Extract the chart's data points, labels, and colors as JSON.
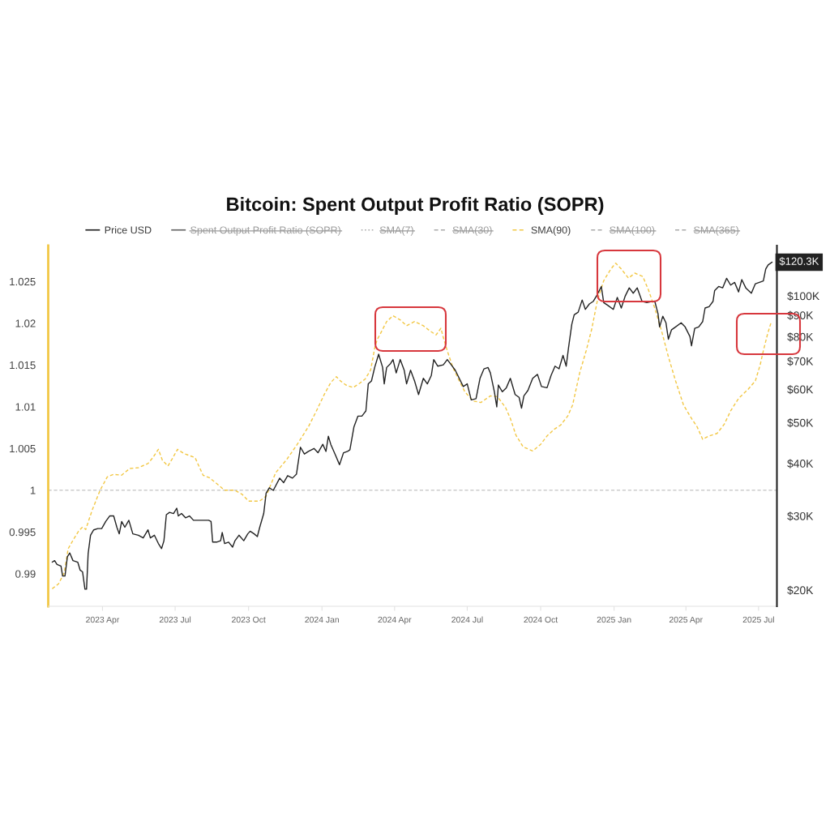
{
  "chart_data": {
    "type": "line",
    "title": "Bitcoin: Spent Output Profit Ratio (SOPR)",
    "xlim": [
      "2023-01-23",
      "2025-07-24"
    ],
    "xticks": [
      {
        "value": "2023-04-01",
        "label": "2023 Apr"
      },
      {
        "value": "2023-07-01",
        "label": "2023 Jul"
      },
      {
        "value": "2023-10-01",
        "label": "2023 Oct"
      },
      {
        "value": "2024-01-01",
        "label": "2024 Jan"
      },
      {
        "value": "2024-04-01",
        "label": "2024 Apr"
      },
      {
        "value": "2024-07-01",
        "label": "2024 Jul"
      },
      {
        "value": "2024-10-01",
        "label": "2024 Oct"
      },
      {
        "value": "2025-01-01",
        "label": "2025 Jan"
      },
      {
        "value": "2025-04-01",
        "label": "2025 Apr"
      },
      {
        "value": "2025-07-01",
        "label": "2025 Jul"
      }
    ],
    "ylim": [
      0.9861,
      1.0293
    ],
    "yticks": [
      0.99,
      0.995,
      1,
      1.005,
      1.01,
      1.015,
      1.02,
      1.025
    ],
    "y2lim": [
      18300,
      131700
    ],
    "y2ticks": [
      {
        "value": 20000,
        "label": "$20K"
      },
      {
        "value": 30000,
        "label": "$30K"
      },
      {
        "value": 40000,
        "label": "$40K"
      },
      {
        "value": 50000,
        "label": "$50K"
      },
      {
        "value": 60000,
        "label": "$60K"
      },
      {
        "value": 70000,
        "label": "$70K"
      },
      {
        "value": 80000,
        "label": "$80K"
      },
      {
        "value": 90000,
        "label": "$90K"
      },
      {
        "value": 100000,
        "label": "$100K"
      }
    ],
    "log": "y2",
    "legend": "top",
    "ref_lines": [
      {
        "axis": "y",
        "value": 1,
        "color": "#cccccc",
        "line_style": "dashed"
      }
    ],
    "series": [
      {
        "name": "Price USD",
        "color": "#222222",
        "axis": "y2",
        "line_style": "solid",
        "x": [
          "2023-01-28",
          "2023-01-31",
          "2023-02-03",
          "2023-02-08",
          "2023-02-10",
          "2023-02-13",
          "2023-02-16",
          "2023-02-19",
          "2023-02-23",
          "2023-03-01",
          "2023-03-04",
          "2023-03-07",
          "2023-03-10",
          "2023-03-12",
          "2023-03-14",
          "2023-03-17",
          "2023-03-21",
          "2023-03-26",
          "2023-03-31",
          "2023-04-05",
          "2023-04-10",
          "2023-04-15",
          "2023-04-19",
          "2023-04-22",
          "2023-04-25",
          "2023-04-29",
          "2023-05-04",
          "2023-05-09",
          "2023-05-16",
          "2023-05-22",
          "2023-05-28",
          "2023-05-31",
          "2023-06-05",
          "2023-06-10",
          "2023-06-14",
          "2023-06-17",
          "2023-06-20",
          "2023-06-24",
          "2023-06-29",
          "2023-07-03",
          "2023-07-05",
          "2023-07-09",
          "2023-07-14",
          "2023-07-19",
          "2023-07-24",
          "2023-07-31",
          "2023-08-07",
          "2023-08-12",
          "2023-08-15",
          "2023-08-17",
          "2023-08-22",
          "2023-08-27",
          "2023-08-29",
          "2023-09-01",
          "2023-09-06",
          "2023-09-11",
          "2023-09-14",
          "2023-09-19",
          "2023-09-25",
          "2023-09-30",
          "2023-10-03",
          "2023-10-08",
          "2023-10-12",
          "2023-10-15",
          "2023-10-20",
          "2023-10-23",
          "2023-10-27",
          "2023-11-01",
          "2023-11-09",
          "2023-11-14",
          "2023-11-19",
          "2023-11-25",
          "2023-11-30",
          "2023-12-05",
          "2023-12-10",
          "2023-12-15",
          "2023-12-22",
          "2023-12-27",
          "2024-01-02",
          "2024-01-06",
          "2024-01-09",
          "2024-01-12",
          "2024-01-18",
          "2024-01-23",
          "2024-01-28",
          "2024-02-02",
          "2024-02-05",
          "2024-02-10",
          "2024-02-15",
          "2024-02-20",
          "2024-02-25",
          "2024-02-28",
          "2024-03-03",
          "2024-03-07",
          "2024-03-12",
          "2024-03-17",
          "2024-03-19",
          "2024-03-22",
          "2024-03-27",
          "2024-03-30",
          "2024-04-03",
          "2024-04-08",
          "2024-04-13",
          "2024-04-16",
          "2024-04-21",
          "2024-04-26",
          "2024-05-01",
          "2024-05-07",
          "2024-05-12",
          "2024-05-17",
          "2024-05-20",
          "2024-05-25",
          "2024-06-01",
          "2024-06-06",
          "2024-06-11",
          "2024-06-16",
          "2024-06-21",
          "2024-06-26",
          "2024-07-01",
          "2024-07-06",
          "2024-07-12",
          "2024-07-17",
          "2024-07-22",
          "2024-07-27",
          "2024-07-30",
          "2024-08-04",
          "2024-08-07",
          "2024-08-09",
          "2024-08-14",
          "2024-08-19",
          "2024-08-24",
          "2024-08-30",
          "2024-09-04",
          "2024-09-07",
          "2024-09-10",
          "2024-09-15",
          "2024-09-21",
          "2024-09-27",
          "2024-10-02",
          "2024-10-09",
          "2024-10-14",
          "2024-10-19",
          "2024-10-24",
          "2024-10-29",
          "2024-11-02",
          "2024-11-05",
          "2024-11-09",
          "2024-11-12",
          "2024-11-17",
          "2024-11-22",
          "2024-11-26",
          "2024-12-01",
          "2024-12-06",
          "2024-12-11",
          "2024-12-16",
          "2024-12-19",
          "2024-12-24",
          "2024-12-31",
          "2025-01-05",
          "2025-01-10",
          "2025-01-15",
          "2025-01-20",
          "2025-01-25",
          "2025-01-30",
          "2025-02-05",
          "2025-02-11",
          "2025-02-18",
          "2025-02-21",
          "2025-02-25",
          "2025-02-27",
          "2025-03-03",
          "2025-03-07",
          "2025-03-10",
          "2025-03-14",
          "2025-03-19",
          "2025-03-26",
          "2025-03-31",
          "2025-04-06",
          "2025-04-08",
          "2025-04-12",
          "2025-04-17",
          "2025-04-22",
          "2025-04-25",
          "2025-04-30",
          "2025-05-05",
          "2025-05-07",
          "2025-05-12",
          "2025-05-17",
          "2025-05-22",
          "2025-05-27",
          "2025-06-01",
          "2025-06-06",
          "2025-06-10",
          "2025-06-15",
          "2025-06-22",
          "2025-06-27",
          "2025-07-02",
          "2025-07-07",
          "2025-07-10",
          "2025-07-13",
          "2025-07-18"
        ],
        "values": [
          23300,
          23500,
          23000,
          22800,
          21600,
          21600,
          24000,
          24500,
          23500,
          23300,
          22300,
          22100,
          20100,
          20100,
          24400,
          27000,
          27800,
          28000,
          28000,
          29100,
          30000,
          30000,
          28200,
          27200,
          29100,
          28200,
          29300,
          27200,
          27000,
          26600,
          27800,
          26600,
          27000,
          25800,
          25100,
          26200,
          30200,
          30600,
          30400,
          31300,
          30000,
          30400,
          29700,
          30000,
          29300,
          29300,
          29300,
          29300,
          29100,
          26000,
          26000,
          26200,
          27400,
          25800,
          26000,
          25300,
          26200,
          27000,
          26200,
          27200,
          27600,
          27200,
          26800,
          28200,
          30400,
          34000,
          35000,
          34500,
          36900,
          36000,
          37400,
          36900,
          37700,
          43700,
          42100,
          42700,
          43400,
          42400,
          44400,
          42700,
          46400,
          44400,
          41800,
          39700,
          42400,
          42700,
          43100,
          48800,
          51800,
          51800,
          53300,
          61800,
          62800,
          67600,
          72700,
          67600,
          61800,
          67600,
          69100,
          70600,
          65600,
          70600,
          66600,
          61800,
          66600,
          62800,
          58300,
          63700,
          61800,
          64700,
          70600,
          68100,
          68600,
          70600,
          68600,
          66600,
          63700,
          60900,
          61800,
          56600,
          57000,
          63700,
          67100,
          67600,
          65600,
          59200,
          54500,
          61400,
          59200,
          60500,
          63700,
          58300,
          57400,
          54100,
          57900,
          59600,
          63700,
          65100,
          60900,
          60500,
          64700,
          68100,
          67100,
          72200,
          68100,
          75500,
          85600,
          90200,
          91500,
          97800,
          92900,
          95700,
          97100,
          100800,
          105300,
          96400,
          95000,
          92900,
          99200,
          93600,
          100000,
          104500,
          101500,
          104500,
          97100,
          96400,
          97100,
          97100,
          90800,
          84400,
          89500,
          86300,
          78900,
          83100,
          84400,
          86300,
          84400,
          80100,
          76100,
          83700,
          84400,
          86900,
          93600,
          94300,
          97100,
          103000,
          105300,
          104500,
          110100,
          106100,
          107700,
          102200,
          109300,
          104500,
          101500,
          106900,
          107700,
          108500,
          115900,
          118500,
          120300
        ],
        "value_labels": [
          null,
          null,
          null,
          null,
          null,
          null,
          null,
          null,
          null,
          null,
          null,
          null,
          null,
          null,
          null,
          null,
          null,
          null,
          null,
          null,
          null,
          null,
          null,
          null,
          null,
          null,
          null,
          null,
          null,
          null,
          null,
          null,
          null,
          null,
          null,
          null,
          null,
          null,
          null,
          null,
          null,
          null,
          null,
          null,
          null,
          null,
          null,
          null,
          null,
          null,
          null,
          null,
          null,
          null,
          null,
          null,
          null,
          null,
          null,
          null,
          null,
          null,
          null,
          null,
          null,
          null,
          null,
          null,
          null,
          null,
          null,
          null,
          null,
          null,
          null,
          null,
          null,
          null,
          null,
          null,
          null,
          null,
          null,
          null,
          null,
          null,
          null,
          null,
          null,
          null,
          null,
          null,
          null,
          null,
          null,
          null,
          null,
          null,
          null,
          null,
          null,
          null,
          null,
          null,
          null,
          null,
          null,
          null,
          null,
          null,
          null,
          null,
          null,
          null,
          null,
          null,
          null,
          null,
          null,
          null,
          null,
          null,
          null,
          null,
          null,
          null,
          null,
          null,
          null,
          null,
          null,
          null,
          null,
          null,
          null,
          null,
          null,
          null,
          null,
          null,
          null,
          null,
          null,
          null,
          null,
          null,
          null,
          null,
          null,
          null,
          null,
          null,
          null,
          null,
          null,
          null,
          null,
          null,
          null,
          null,
          null,
          null,
          null,
          null,
          null,
          null,
          null,
          null,
          null,
          null,
          null,
          null,
          null,
          null,
          null,
          null,
          null,
          null,
          null,
          null,
          null,
          null,
          null,
          null,
          null,
          null,
          null,
          null,
          null,
          null,
          null,
          null,
          null,
          null,
          null,
          null,
          null,
          null,
          null,
          null,
          "$120.3K"
        ]
      },
      {
        "name": "Spent Output Profit Ratio (SOPR)",
        "color": "#666666",
        "line_style": "solid"
      },
      {
        "name": "SMA(7)",
        "color": "#aaaaaa",
        "line_style": "dotted"
      },
      {
        "name": "SMA(30)",
        "color": "#aaaaaa",
        "line_style": "dashed"
      },
      {
        "name": "SMA(90)",
        "color": "#f2c744",
        "line_style": "dashed",
        "x": [
          "2023-01-28",
          "2023-02-05",
          "2023-02-12",
          "2023-02-17",
          "2023-02-23",
          "2023-03-02",
          "2023-03-07",
          "2023-03-11",
          "2023-03-19",
          "2023-03-29",
          "2023-04-07",
          "2023-04-15",
          "2023-04-25",
          "2023-05-05",
          "2023-05-16",
          "2023-05-28",
          "2023-06-03",
          "2023-06-10",
          "2023-06-15",
          "2023-06-22",
          "2023-06-27",
          "2023-07-04",
          "2023-07-12",
          "2023-07-26",
          "2023-08-05",
          "2023-08-13",
          "2023-08-22",
          "2023-09-01",
          "2023-09-14",
          "2023-09-23",
          "2023-10-01",
          "2023-10-15",
          "2023-10-23",
          "2023-11-04",
          "2023-11-18",
          "2023-12-01",
          "2023-12-15",
          "2023-12-25",
          "2024-01-04",
          "2024-01-12",
          "2024-01-19",
          "2024-01-24",
          "2024-01-31",
          "2024-02-09",
          "2024-02-17",
          "2024-02-24",
          "2024-03-02",
          "2024-03-07",
          "2024-03-10",
          "2024-03-15",
          "2024-03-22",
          "2024-03-30",
          "2024-04-08",
          "2024-04-16",
          "2024-04-26",
          "2024-05-07",
          "2024-05-15",
          "2024-05-23",
          "2024-05-29",
          "2024-06-01",
          "2024-06-06",
          "2024-06-13",
          "2024-06-21",
          "2024-06-28",
          "2024-07-08",
          "2024-07-18",
          "2024-07-30",
          "2024-08-08",
          "2024-08-18",
          "2024-08-24",
          "2024-08-31",
          "2024-09-09",
          "2024-09-21",
          "2024-10-01",
          "2024-10-09",
          "2024-10-18",
          "2024-10-26",
          "2024-11-04",
          "2024-11-10",
          "2024-11-19",
          "2024-11-27",
          "2024-12-04",
          "2024-12-11",
          "2024-12-19",
          "2024-12-28",
          "2025-01-03",
          "2025-01-10",
          "2025-01-19",
          "2025-01-27",
          "2025-02-06",
          "2025-02-13",
          "2025-02-21",
          "2025-03-02",
          "2025-03-10",
          "2025-03-19",
          "2025-03-29",
          "2025-04-08",
          "2025-04-15",
          "2025-04-22",
          "2025-04-30",
          "2025-05-10",
          "2025-05-19",
          "2025-05-27",
          "2025-06-06",
          "2025-06-18",
          "2025-06-27",
          "2025-07-03",
          "2025-07-07",
          "2025-07-12",
          "2025-07-17"
        ],
        "values": [
          0.9882,
          0.9888,
          0.9901,
          0.993,
          0.994,
          0.9951,
          0.9956,
          0.9953,
          0.9976,
          1.0,
          1.0016,
          1.0019,
          1.0018,
          1.0026,
          1.0027,
          1.0032,
          1.0039,
          1.0049,
          1.0036,
          1.0029,
          1.0037,
          1.0049,
          1.0044,
          1.0039,
          1.0018,
          1.0015,
          1.0008,
          1.0,
          1.0,
          0.9995,
          0.9987,
          0.9987,
          0.9993,
          1.0021,
          1.0037,
          1.0055,
          1.0076,
          1.0095,
          1.0115,
          1.0129,
          1.0136,
          1.0131,
          1.0126,
          1.0123,
          1.0128,
          1.0133,
          1.0144,
          1.017,
          1.018,
          1.0189,
          1.0202,
          1.0209,
          1.0204,
          1.0197,
          1.0202,
          1.0197,
          1.0191,
          1.0186,
          1.0194,
          1.0183,
          1.0167,
          1.0147,
          1.0131,
          1.0118,
          1.0107,
          1.0105,
          1.0113,
          1.0112,
          1.0099,
          1.0086,
          1.0066,
          1.0052,
          1.0047,
          1.0055,
          1.0065,
          1.0073,
          1.0078,
          1.0089,
          1.0102,
          1.0141,
          1.0167,
          1.0193,
          1.0227,
          1.0251,
          1.0265,
          1.0272,
          1.0265,
          1.0254,
          1.026,
          1.0256,
          1.024,
          1.0218,
          1.0189,
          1.016,
          1.0131,
          1.0102,
          1.0086,
          1.0076,
          1.0061,
          1.0065,
          1.0068,
          1.0079,
          1.0095,
          1.011,
          1.0121,
          1.0131,
          1.015,
          1.0167,
          1.0186,
          1.0202
        ]
      },
      {
        "name": "SMA(100)",
        "color": "#aaaaaa",
        "line_style": "dashed"
      },
      {
        "name": "SMA(365)",
        "color": "#aaaaaa",
        "line_style": "dashed"
      }
    ]
  }
}
